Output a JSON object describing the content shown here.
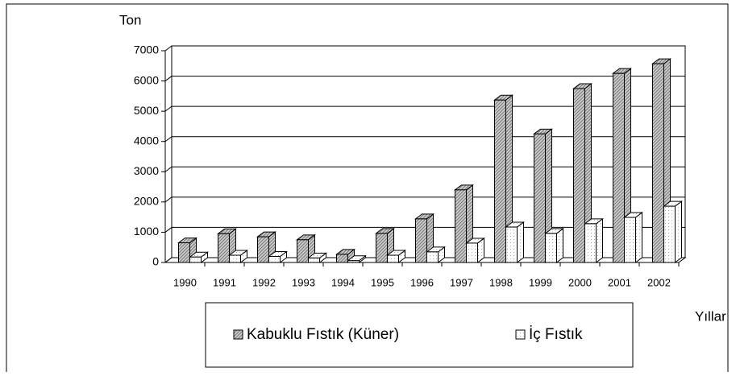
{
  "chart_data": {
    "type": "bar3d",
    "y_label": "Ton",
    "x_label": "Yıllar",
    "categories": [
      "1990",
      "1991",
      "1992",
      "1993",
      "1994",
      "1995",
      "1996",
      "1997",
      "1998",
      "1999",
      "2000",
      "2001",
      "2002"
    ],
    "series": [
      {
        "name": "Kabuklu Fıstık (Küner)",
        "color": "#808080",
        "values": [
          650,
          950,
          850,
          750,
          270,
          960,
          1440,
          2400,
          5370,
          4250,
          5750,
          6250,
          6570
        ]
      },
      {
        "name": "İç Fıstık",
        "color": "#ffffff",
        "values": [
          180,
          240,
          200,
          150,
          60,
          240,
          350,
          640,
          1170,
          960,
          1280,
          1490,
          1860
        ]
      }
    ],
    "ylim": [
      0,
      7000
    ],
    "yticks": [
      0,
      1000,
      2000,
      3000,
      4000,
      5000,
      6000,
      7000
    ],
    "grid": true
  }
}
